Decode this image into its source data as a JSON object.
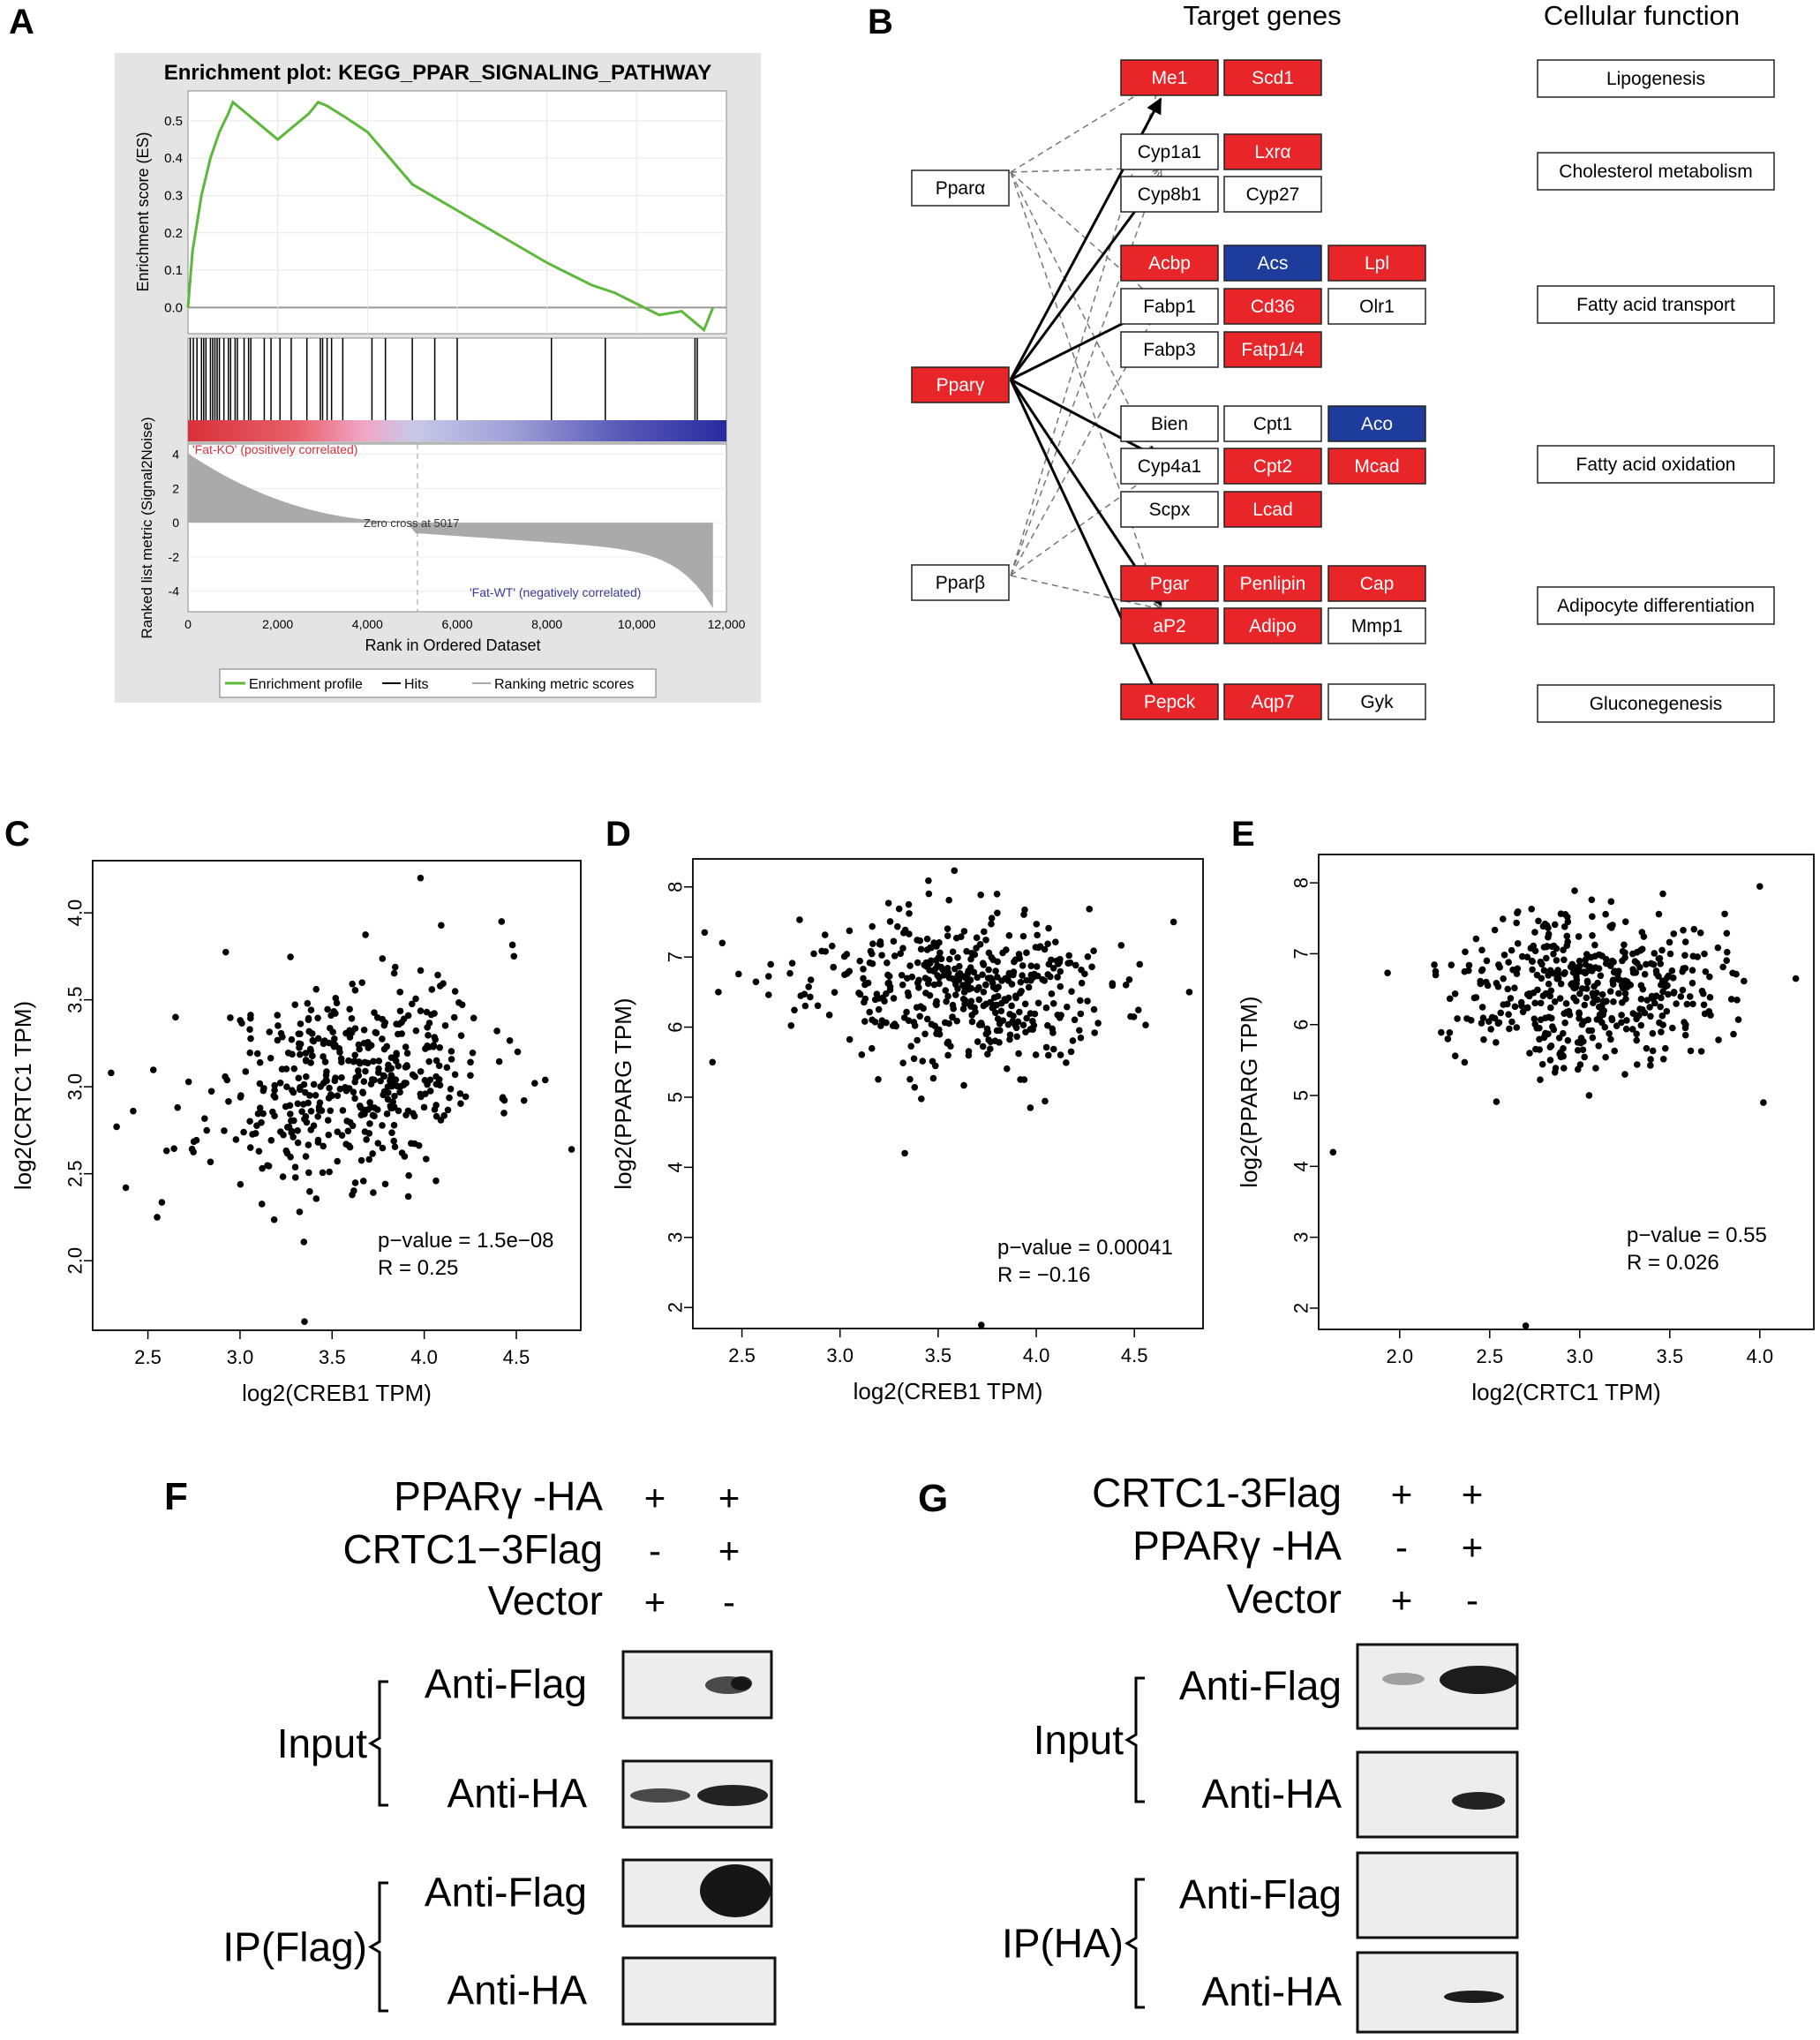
{
  "panels": {
    "A": "A",
    "B": "B",
    "C": "C",
    "D": "D",
    "E": "E",
    "F": "F",
    "G": "G"
  },
  "colors": {
    "red": "#e8262a",
    "blue": "#1e3c9c",
    "green": "#5cb83b",
    "gray": "#a8a8a8"
  },
  "panelA": {
    "title": "Enrichment plot: KEGG_PPAR_SIGNALING_PATHWAY",
    "es_ylabel": "Enrichment score (ES)",
    "es_ticks": [
      "0.5",
      "0.4",
      "0.3",
      "0.2",
      "0.1",
      "0.0"
    ],
    "rank_ylabel": "Ranked list metric (Signal2Noise)",
    "rank_ticks": [
      "4",
      "2",
      "0",
      "-2",
      "-4"
    ],
    "pos_label": "'Fat-KO' (positively correlated)",
    "neg_label": "'Fat-WT' (negatively correlated)",
    "zero_cross": "Zero cross at 5017",
    "xlabel": "Rank in Ordered Dataset",
    "x_ticks": [
      "0",
      "2,000",
      "4,000",
      "6,000",
      "8,000",
      "10,000",
      "12,000"
    ],
    "legend": {
      "profile": "Enrichment profile",
      "hits": "Hits",
      "ranking": "Ranking metric scores"
    }
  },
  "panelB": {
    "header_targets": "Target genes",
    "header_function": "Cellular function",
    "receptors": [
      {
        "label": "Pparα",
        "fill": "white"
      },
      {
        "label": "Pparγ",
        "fill": "red"
      },
      {
        "label": "Pparβ",
        "fill": "white"
      }
    ],
    "genes": [
      {
        "label": "Me1",
        "fill": "red"
      },
      {
        "label": "Scd1",
        "fill": "red"
      },
      {
        "label": "Cyp1a1",
        "fill": "white"
      },
      {
        "label": "Lxrα",
        "fill": "red"
      },
      {
        "label": "Cyp8b1",
        "fill": "white"
      },
      {
        "label": "Cyp27",
        "fill": "white"
      },
      {
        "label": "Acbp",
        "fill": "red"
      },
      {
        "label": "Acs",
        "fill": "blue"
      },
      {
        "label": "Lpl",
        "fill": "red"
      },
      {
        "label": "Fabp1",
        "fill": "white"
      },
      {
        "label": "Cd36",
        "fill": "red"
      },
      {
        "label": "Olr1",
        "fill": "white"
      },
      {
        "label": "Fabp3",
        "fill": "white"
      },
      {
        "label": "Fatp1/4",
        "fill": "red"
      },
      {
        "label": "Bien",
        "fill": "white"
      },
      {
        "label": "Cpt1",
        "fill": "white"
      },
      {
        "label": "Aco",
        "fill": "blue"
      },
      {
        "label": "Cyp4a1",
        "fill": "white"
      },
      {
        "label": "Cpt2",
        "fill": "red"
      },
      {
        "label": "Mcad",
        "fill": "red"
      },
      {
        "label": "Scpx",
        "fill": "white"
      },
      {
        "label": "Lcad",
        "fill": "red"
      },
      {
        "label": "Pgar",
        "fill": "red"
      },
      {
        "label": "Penlipin",
        "fill": "red"
      },
      {
        "label": "Cap",
        "fill": "red"
      },
      {
        "label": "aP2",
        "fill": "red"
      },
      {
        "label": "Adipo",
        "fill": "red"
      },
      {
        "label": "Mmp1",
        "fill": "white"
      },
      {
        "label": "Pepck",
        "fill": "red"
      },
      {
        "label": "Aqp7",
        "fill": "red"
      },
      {
        "label": "Gyk",
        "fill": "white"
      }
    ],
    "functions": [
      "Lipogenesis",
      "Cholesterol metabolism",
      "Fatty acid transport",
      "Fatty acid oxidation",
      "Adipocyte differentiation",
      "Gluconegenesis"
    ]
  },
  "chart_data": [
    {
      "type": "line",
      "panel": "A",
      "title": "Enrichment plot: KEGG_PPAR_SIGNALING_PATHWAY",
      "xlabel": "Rank in Ordered Dataset",
      "ylabel": "Enrichment score (ES)",
      "xlim": [
        0,
        12000
      ],
      "ylim": [
        -0.07,
        0.58
      ],
      "x": [
        0,
        100,
        300,
        500,
        700,
        900,
        1000,
        1300,
        1600,
        2000,
        2300,
        2500,
        2700,
        2900,
        3100,
        3500,
        4000,
        4500,
        5000,
        6000,
        7000,
        8000,
        9000,
        9500,
        10000,
        10500,
        11000,
        11300,
        11500,
        11600,
        11700
      ],
      "y": [
        0.0,
        0.15,
        0.3,
        0.4,
        0.47,
        0.52,
        0.55,
        0.52,
        0.49,
        0.45,
        0.48,
        0.5,
        0.52,
        0.55,
        0.54,
        0.51,
        0.47,
        0.4,
        0.33,
        0.26,
        0.19,
        0.12,
        0.06,
        0.04,
        0.01,
        -0.02,
        -0.01,
        -0.04,
        -0.06,
        -0.03,
        0.0
      ],
      "hits": [
        50,
        120,
        200,
        300,
        350,
        400,
        500,
        550,
        600,
        650,
        700,
        800,
        900,
        950,
        1050,
        1100,
        1250,
        1350,
        1400,
        1700,
        1850,
        2050,
        2300,
        2650,
        2950,
        3000,
        3100,
        3200,
        3450,
        4100,
        4400,
        5000,
        5500,
        6000,
        8100,
        9300,
        11300,
        11350
      ]
    },
    {
      "type": "scatter",
      "panel": "C",
      "xlabel": "log2(CREB1 TPM)",
      "ylabel": "log2(CRTC1 TPM)",
      "xlim": [
        2.2,
        4.85
      ],
      "ylim": [
        1.6,
        4.3
      ],
      "xticks": [
        "2.5",
        "3.0",
        "3.5",
        "4.0",
        "4.5"
      ],
      "yticks": [
        "2.0",
        "2.5",
        "3.0",
        "3.5",
        "4.0"
      ],
      "n_points": 450,
      "center": [
        3.6,
        3.05
      ],
      "sd": [
        0.38,
        0.36
      ],
      "r": 0.25,
      "outliers": [
        [
          2.3,
          3.08
        ],
        [
          2.33,
          2.77
        ],
        [
          2.38,
          2.42
        ],
        [
          2.42,
          2.86
        ],
        [
          2.55,
          2.25
        ],
        [
          2.65,
          3.4
        ],
        [
          3.35,
          1.65
        ],
        [
          3.98,
          4.2
        ],
        [
          4.8,
          2.64
        ],
        [
          4.42,
          3.95
        ],
        [
          4.6,
          3.02
        ]
      ],
      "stats": {
        "p": "p−value = 1.5e−08",
        "r": "R = 0.25"
      }
    },
    {
      "type": "scatter",
      "panel": "D",
      "xlabel": "log2(CREB1 TPM)",
      "ylabel": "log2(PPARG TPM)",
      "xlim": [
        2.25,
        4.85
      ],
      "ylim": [
        1.7,
        8.4
      ],
      "xticks": [
        "2.5",
        "3.0",
        "3.5",
        "4.0",
        "4.5"
      ],
      "yticks": [
        "2",
        "3",
        "4",
        "5",
        "6",
        "7",
        "8"
      ],
      "n_points": 450,
      "center": [
        3.6,
        6.55
      ],
      "sd": [
        0.38,
        0.65
      ],
      "r": -0.16,
      "outliers": [
        [
          2.31,
          7.35
        ],
        [
          2.35,
          5.5
        ],
        [
          2.38,
          6.5
        ],
        [
          2.4,
          7.2
        ],
        [
          3.33,
          4.2
        ],
        [
          3.72,
          1.75
        ],
        [
          3.97,
          4.85
        ],
        [
          4.78,
          6.5
        ],
        [
          4.7,
          7.5
        ]
      ],
      "stats": {
        "p": "p−value = 0.00041",
        "r": "R = −0.16"
      }
    },
    {
      "type": "scatter",
      "panel": "E",
      "xlabel": "log2(CRTC1 TPM)",
      "ylabel": "log2(PPARG TPM)",
      "xlim": [
        1.55,
        4.3
      ],
      "ylim": [
        1.7,
        8.4
      ],
      "xticks": [
        "2.0",
        "2.5",
        "3.0",
        "3.5",
        "4.0"
      ],
      "yticks": [
        "2",
        "3",
        "4",
        "5",
        "6",
        "7",
        "8"
      ],
      "n_points": 450,
      "center": [
        3.05,
        6.55
      ],
      "sd": [
        0.36,
        0.65
      ],
      "r": 0.026,
      "outliers": [
        [
          1.63,
          4.2
        ],
        [
          2.2,
          6.7
        ],
        [
          2.7,
          1.75
        ],
        [
          4.02,
          4.9
        ],
        [
          4.2,
          6.65
        ],
        [
          4.0,
          7.95
        ]
      ],
      "stats": {
        "p": "p−value = 0.55",
        "r": "R = 0.026"
      }
    }
  ],
  "panelF": {
    "rows": [
      {
        "label": "PPARγ -HA",
        "lane1": "+",
        "lane2": "+"
      },
      {
        "label": "CRTC1−3Flag",
        "lane1": "-",
        "lane2": "+"
      },
      {
        "label": "Vector",
        "lane1": "+",
        "lane2": "-"
      }
    ],
    "group1": "Input",
    "group2": "IP(Flag)",
    "blots": [
      "Anti-Flag",
      "Anti-HA",
      "Anti-Flag",
      "Anti-HA"
    ]
  },
  "panelG": {
    "rows": [
      {
        "label": "CRTC1-3Flag",
        "lane1": "+",
        "lane2": "+"
      },
      {
        "label": "PPARγ -HA",
        "lane1": "-",
        "lane2": "+"
      },
      {
        "label": "Vector",
        "lane1": "+",
        "lane2": "-"
      }
    ],
    "group1": "Input",
    "group2": "IP(HA)",
    "blots": [
      "Anti-Flag",
      "Anti-HA",
      "Anti-Flag",
      "Anti-HA"
    ]
  }
}
